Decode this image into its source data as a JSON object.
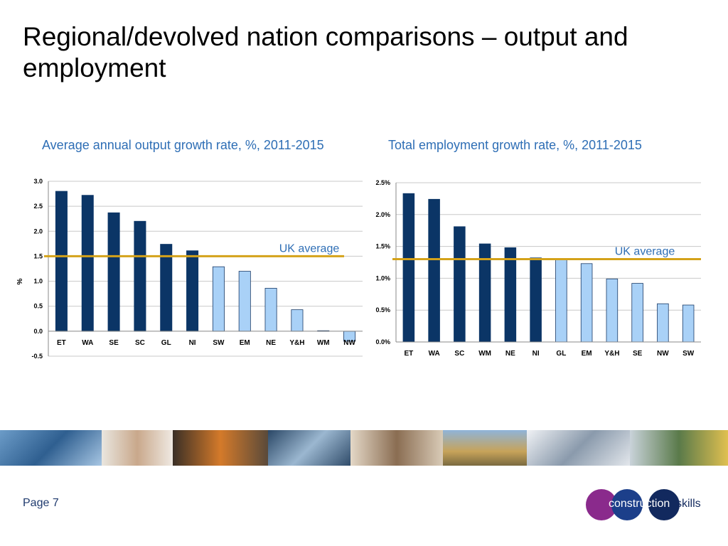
{
  "page": {
    "title": "Regional/devolved nation comparisons – output and employment",
    "page_number": "Page 7"
  },
  "logo": {
    "part1": "construction",
    "part2": "skills"
  },
  "colors": {
    "dark_bar": "#0b3566",
    "light_bar": "#a9d1f7",
    "average_line": "#d4a21a",
    "title_blue": "#2e6eb5"
  },
  "chart_data": [
    {
      "type": "bar",
      "title": "Average annual output growth rate, %, 2011-2015",
      "ylabel": "%",
      "categories": [
        "ET",
        "WA",
        "SE",
        "SC",
        "GL",
        "NI",
        "SW",
        "EM",
        "NE",
        "Y&H",
        "WM",
        "NW"
      ],
      "values": [
        2.8,
        2.72,
        2.37,
        2.2,
        1.74,
        1.61,
        1.29,
        1.2,
        0.86,
        0.43,
        0.01,
        -0.2
      ],
      "highlight": [
        "dark",
        "dark",
        "dark",
        "dark",
        "dark",
        "dark",
        "light",
        "light",
        "light",
        "light",
        "light",
        "light"
      ],
      "ylim": [
        -0.5,
        3.0
      ],
      "yticks": [
        "-0.5",
        "0.0",
        "0.5",
        "1.0",
        "1.5",
        "2.0",
        "2.5",
        "3.0"
      ],
      "ytick_values": [
        -0.5,
        0,
        0.5,
        1.0,
        1.5,
        2.0,
        2.5,
        3.0
      ],
      "reference_line": {
        "label": "UK average",
        "value": 1.5
      },
      "grid": true
    },
    {
      "type": "bar",
      "title": "Total employment growth rate, %, 2011-2015",
      "ylabel": "",
      "categories": [
        "ET",
        "WA",
        "SC",
        "WM",
        "NE",
        "NI",
        "GL",
        "EM",
        "Y&H",
        "SE",
        "NW",
        "SW"
      ],
      "values": [
        2.33,
        2.24,
        1.81,
        1.54,
        1.48,
        1.32,
        1.3,
        1.23,
        0.99,
        0.92,
        0.6,
        0.58
      ],
      "highlight": [
        "dark",
        "dark",
        "dark",
        "dark",
        "dark",
        "dark",
        "light",
        "light",
        "light",
        "light",
        "light",
        "light"
      ],
      "ylim": [
        0,
        2.5
      ],
      "yticks": [
        "0.0%",
        "0.5%",
        "1.0%",
        "1.5%",
        "2.0%",
        "2.5%"
      ],
      "ytick_values": [
        0,
        0.5,
        1.0,
        1.5,
        2.0,
        2.5
      ],
      "reference_line": {
        "label": "UK average",
        "value": 1.3
      },
      "grid": true
    }
  ]
}
